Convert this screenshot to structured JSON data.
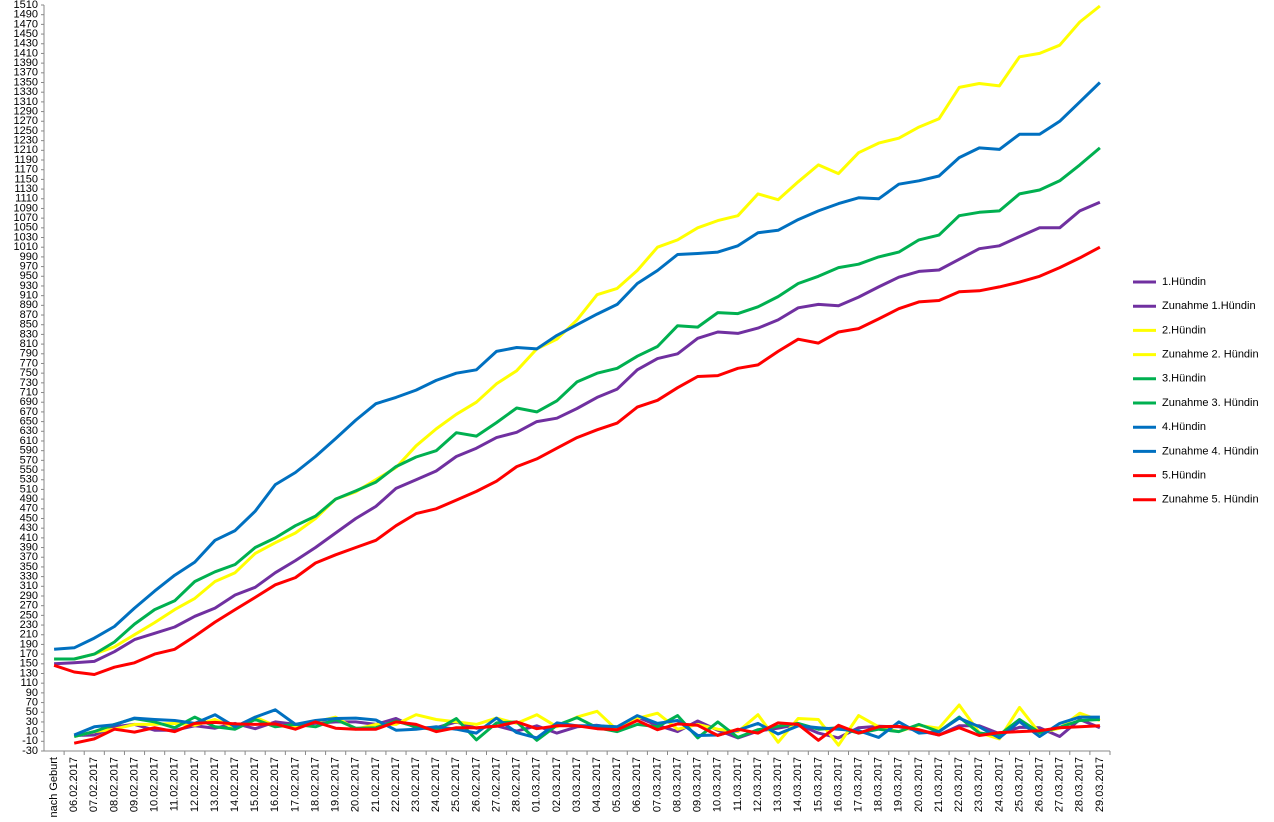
{
  "chart_data": {
    "type": "line",
    "categories": [
      "nach Geburt",
      "06.02.2017",
      "07.02.2017",
      "08.02.2017",
      "09.02.2017",
      "10.02.2017",
      "11.02.2017",
      "12.02.2017",
      "13.02.2017",
      "14.02.2017",
      "15.02.2017",
      "16.02.2017",
      "17.02.2017",
      "18.02.2017",
      "19.02.2017",
      "20.02.2017",
      "21.02.2017",
      "22.02.2017",
      "23.02.2017",
      "24.02.2017",
      "25.02.2017",
      "26.02.2017",
      "27.02.2017",
      "28.02.2017",
      "01.03.2017",
      "02.03.2017",
      "03.03.2017",
      "04.03.2017",
      "05.03.2017",
      "06.03.2017",
      "07.03.2017",
      "08.03.2017",
      "09.03.2017",
      "10.03.2017",
      "11.03.2017",
      "12.03.2017",
      "13.03.2017",
      "14.03.2017",
      "15.03.2017",
      "16.03.2017",
      "17.03.2017",
      "18.03.2017",
      "19.03.2017",
      "20.03.2017",
      "21.03.2017",
      "22.03.2017",
      "23.03.2017",
      "24.03.2017",
      "25.03.2017",
      "26.03.2017",
      "27.03.2017",
      "28.03.2017",
      "29.03.2017"
    ],
    "series": [
      {
        "name": "1.Hündin",
        "color": "#7030a0",
        "values": [
          150,
          152,
          155,
          175,
          200,
          213,
          226,
          248,
          265,
          292,
          308,
          338,
          363,
          390,
          420,
          450,
          475,
          512,
          530,
          548,
          578,
          595,
          617,
          628,
          650,
          657,
          677,
          700,
          717,
          757,
          780,
          790,
          822,
          835,
          832,
          843,
          860,
          885,
          892,
          889,
          907,
          928,
          948,
          960,
          963,
          985,
          1007,
          1013,
          1032,
          1050,
          1050,
          1085,
          1103
        ]
      },
      {
        "name": "Zunahme 1.Hündin",
        "color": "#7030a0",
        "values": [
          null,
          2,
          3,
          20,
          25,
          13,
          13,
          22,
          17,
          27,
          16,
          30,
          25,
          27,
          30,
          30,
          25,
          37,
          18,
          18,
          30,
          17,
          22,
          11,
          22,
          7,
          20,
          23,
          17,
          40,
          23,
          10,
          32,
          13,
          -3,
          11,
          17,
          25,
          7,
          -3,
          18,
          21,
          20,
          12,
          3,
          22,
          22,
          6,
          19,
          18,
          0,
          35,
          18
        ]
      },
      {
        "name": "2.Hündin",
        "color": "#ffff00",
        "values": [
          160,
          160,
          170,
          185,
          210,
          235,
          262,
          285,
          320,
          338,
          378,
          400,
          420,
          450,
          490,
          505,
          530,
          555,
          600,
          635,
          665,
          690,
          728,
          755,
          800,
          820,
          860,
          912,
          925,
          962,
          1010,
          1025,
          1050,
          1065,
          1075,
          1120,
          1108,
          1145,
          1180,
          1162,
          1205,
          1225,
          1235,
          1258,
          1275,
          1340,
          1348,
          1343,
          1403,
          1410,
          1427,
          1475,
          1508
        ]
      },
      {
        "name": "Zunahme 2. Hündin",
        "color": "#ffff00",
        "values": [
          null,
          0,
          10,
          15,
          25,
          25,
          27,
          23,
          35,
          18,
          40,
          22,
          20,
          30,
          40,
          15,
          25,
          25,
          45,
          35,
          30,
          25,
          38,
          27,
          45,
          20,
          40,
          52,
          13,
          37,
          48,
          15,
          25,
          15,
          10,
          45,
          -12,
          37,
          35,
          -18,
          43,
          20,
          10,
          23,
          17,
          65,
          8,
          -5,
          60,
          7,
          17,
          48,
          33
        ]
      },
      {
        "name": "3.Hündin",
        "color": "#00b050",
        "values": [
          160,
          160,
          170,
          195,
          232,
          262,
          280,
          320,
          340,
          355,
          390,
          410,
          435,
          455,
          490,
          507,
          525,
          557,
          577,
          590,
          627,
          620,
          648,
          678,
          670,
          693,
          732,
          750,
          760,
          785,
          805,
          848,
          845,
          875,
          873,
          887,
          908,
          935,
          950,
          968,
          975,
          990,
          1000,
          1025,
          1035,
          1075,
          1082,
          1085,
          1120,
          1128,
          1147,
          1180,
          1215
        ]
      },
      {
        "name": "Zunahme 3. Hündin",
        "color": "#00b050",
        "values": [
          null,
          0,
          10,
          25,
          37,
          30,
          18,
          40,
          20,
          15,
          35,
          20,
          25,
          20,
          35,
          17,
          18,
          32,
          20,
          13,
          37,
          -7,
          28,
          30,
          -8,
          23,
          39,
          18,
          10,
          25,
          20,
          43,
          -3,
          30,
          -2,
          14,
          21,
          27,
          15,
          18,
          7,
          15,
          10,
          25,
          10,
          40,
          7,
          3,
          35,
          8,
          19,
          33,
          35
        ]
      },
      {
        "name": "4.Hündin",
        "color": "#0070c0",
        "values": [
          180,
          183,
          203,
          227,
          265,
          300,
          333,
          360,
          405,
          425,
          465,
          520,
          545,
          578,
          615,
          653,
          687,
          700,
          715,
          735,
          750,
          757,
          795,
          803,
          800,
          828,
          850,
          872,
          892,
          935,
          962,
          995,
          997,
          1000,
          1013,
          1040,
          1045,
          1067,
          1085,
          1100,
          1112,
          1110,
          1140,
          1147,
          1157,
          1195,
          1215,
          1212,
          1243,
          1243,
          1270,
          1310,
          1350
        ]
      },
      {
        "name": "Zunahme 4. Hündin",
        "color": "#0070c0",
        "values": [
          null,
          3,
          20,
          24,
          38,
          35,
          33,
          27,
          45,
          20,
          40,
          55,
          25,
          33,
          37,
          38,
          34,
          13,
          15,
          20,
          15,
          7,
          38,
          8,
          -3,
          28,
          22,
          22,
          20,
          43,
          27,
          33,
          2,
          3,
          13,
          27,
          5,
          22,
          18,
          15,
          12,
          -2,
          30,
          7,
          10,
          38,
          20,
          -3,
          31,
          0,
          27,
          40,
          40
        ]
      },
      {
        "name": "5.Hündin",
        "color": "#ff0000",
        "values": [
          147,
          133,
          128,
          143,
          152,
          170,
          180,
          207,
          236,
          262,
          287,
          313,
          328,
          358,
          375,
          390,
          405,
          435,
          460,
          470,
          488,
          506,
          527,
          557,
          573,
          595,
          617,
          633,
          647,
          680,
          694,
          720,
          743,
          745,
          760,
          767,
          795,
          820,
          812,
          835,
          842,
          862,
          883,
          897,
          900,
          918,
          920,
          928,
          938,
          950,
          968,
          988,
          1010
        ]
      },
      {
        "name": "Zunahme 5. Hündin",
        "color": "#ff0000",
        "values": [
          null,
          -14,
          -5,
          15,
          9,
          18,
          10,
          27,
          29,
          26,
          25,
          26,
          15,
          30,
          17,
          15,
          15,
          30,
          25,
          10,
          18,
          18,
          21,
          30,
          16,
          22,
          22,
          16,
          14,
          33,
          14,
          26,
          23,
          2,
          15,
          7,
          28,
          25,
          -8,
          23,
          7,
          20,
          21,
          14,
          3,
          18,
          2,
          8,
          10,
          12,
          18,
          20,
          22
        ]
      }
    ],
    "ylim": [
      -30,
      1510
    ],
    "yticks": [
      -30,
      -10,
      10,
      30,
      50,
      70,
      90,
      110,
      130,
      150,
      170,
      190,
      210,
      230,
      250,
      270,
      290,
      310,
      330,
      350,
      370,
      390,
      410,
      430,
      450,
      470,
      490,
      510,
      530,
      550,
      570,
      590,
      610,
      630,
      650,
      670,
      690,
      710,
      730,
      750,
      770,
      790,
      810,
      830,
      850,
      870,
      890,
      910,
      930,
      950,
      970,
      990,
      1010,
      1030,
      1050,
      1070,
      1090,
      1110,
      1130,
      1150,
      1170,
      1190,
      1210,
      1230,
      1250,
      1270,
      1290,
      1310,
      1330,
      1350,
      1370,
      1390,
      1410,
      1430,
      1450,
      1470,
      1490,
      1510
    ],
    "legend": "right"
  }
}
